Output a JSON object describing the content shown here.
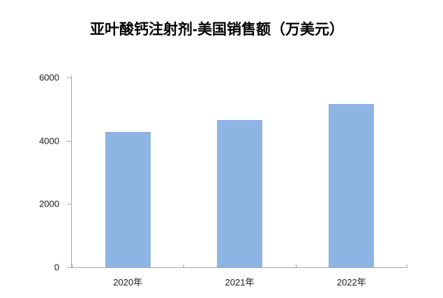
{
  "chart_data": {
    "type": "bar",
    "title": "亚叶酸钙注射剂-美国销售额（万美元）",
    "categories": [
      "2020年",
      "2021年",
      "2022年"
    ],
    "values": [
      4270,
      4660,
      5170
    ],
    "xlabel": "",
    "ylabel": "",
    "ylim": [
      0,
      6000
    ],
    "yticks": [
      0,
      2000,
      4000,
      6000
    ],
    "grid": false,
    "legend": false,
    "bar_color": "#8EB4E3",
    "axis_color": "#A6A6A6",
    "text_color": "#1A1A1A",
    "title_color": "#000000"
  }
}
